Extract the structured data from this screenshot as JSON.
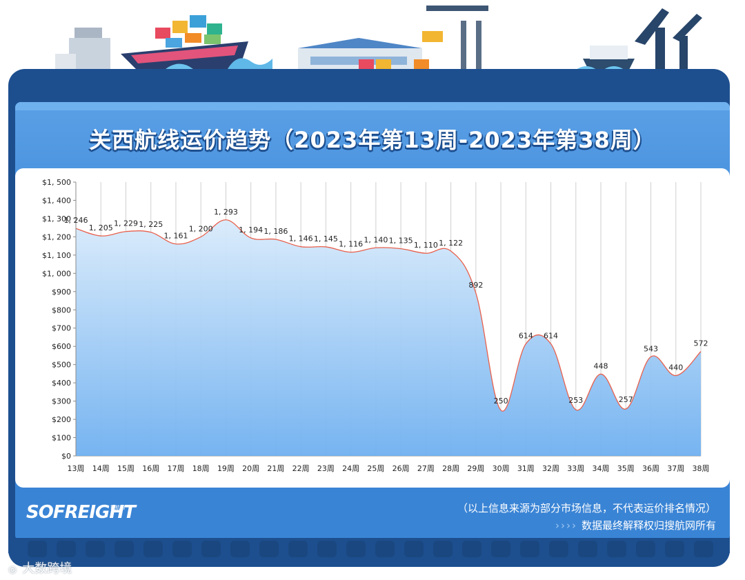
{
  "title": "关西航线运价趋势（2023年第13周-2023年第38周）",
  "colors": {
    "frame": "#1d4f8f",
    "panel": "#3d86d6",
    "line": "#e8604c",
    "area_top": "#d9ebfb",
    "area_bottom": "#6fb0f0"
  },
  "brand": {
    "logo_text": "SOFREIGHT",
    "logo_sub": "搜航网"
  },
  "notes": {
    "source": "（以上信息来源为部分市场信息，不代表运价排名情况）",
    "rights": "数据最终解释权归搜航网所有",
    "arrows": "››››"
  },
  "watermark": "大数跨境",
  "chart_data": {
    "type": "area",
    "title": "关西航线运价趋势（2023年第13周-2023年第38周）",
    "categories": [
      "13周",
      "14周",
      "15周",
      "16周",
      "17周",
      "18周",
      "19周",
      "20周",
      "21周",
      "22周",
      "23周",
      "24周",
      "25周",
      "26周",
      "27周",
      "28周",
      "29周",
      "30周",
      "31周",
      "32周",
      "33周",
      "34周",
      "35周",
      "36周",
      "37周",
      "38周"
    ],
    "values": [
      1246,
      1205,
      1229,
      1225,
      1161,
      1200,
      1293,
      1194,
      1186,
      1146,
      1145,
      1116,
      1140,
      1135,
      1110,
      1122,
      892,
      250,
      614,
      614,
      253,
      448,
      257,
      543,
      440,
      572
    ],
    "labels": [
      "1, 246",
      "1, 205",
      "1, 229",
      "1, 225",
      "1, 161",
      "1, 200",
      "1, 293",
      "1, 194",
      "1, 186",
      "1, 146",
      "1, 145",
      "1, 116",
      "1, 140",
      "1, 135",
      "1, 110",
      "1, 122",
      "892",
      "250",
      "614",
      "614",
      "253",
      "448",
      "257",
      "543",
      "440",
      "572"
    ],
    "yticks": [
      "$0",
      "$100",
      "$200",
      "$300",
      "$400",
      "$500",
      "$600",
      "$700",
      "$800",
      "$900",
      "$1, 000",
      "$1, 100",
      "$1, 200",
      "$1, 300",
      "$1, 400",
      "$1, 500"
    ],
    "ylim": [
      0,
      1500
    ],
    "grid": "vertical",
    "legend": "none"
  }
}
